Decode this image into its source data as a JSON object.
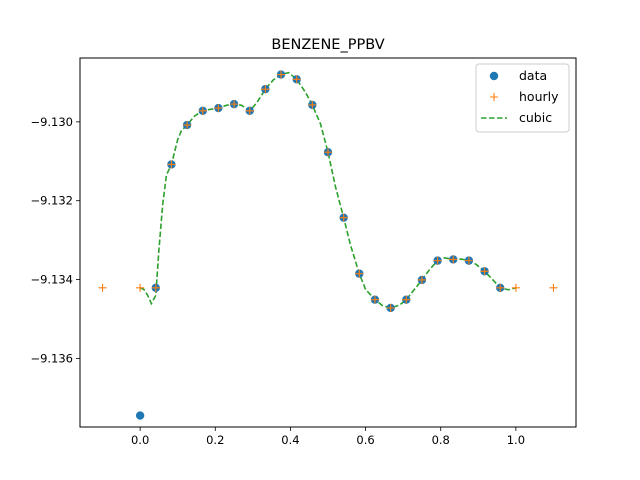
{
  "chart_data": {
    "type": "scatter",
    "title": "BENZENE_PPBV",
    "xlabel": "",
    "ylabel": "",
    "xlim": [
      -0.16,
      1.16
    ],
    "ylim": [
      -9.13774,
      -9.12838
    ],
    "x_ticks": [
      0.0,
      0.2,
      0.4,
      0.6,
      0.8,
      1.0
    ],
    "x_tick_labels": [
      "0.0",
      "0.2",
      "0.4",
      "0.6",
      "0.8",
      "1.0"
    ],
    "y_ticks": [
      -9.136,
      -9.134,
      -9.132,
      -9.13
    ],
    "y_tick_labels": [
      "−9.136",
      "−9.134",
      "−9.132",
      "−9.130"
    ],
    "grid": false,
    "legend_position": "top-right",
    "series": [
      {
        "name": "data",
        "style": "marker-circle",
        "color": "#1f77b4",
        "x": [
          0.0,
          0.0417,
          0.0833,
          0.125,
          0.1667,
          0.2083,
          0.25,
          0.2917,
          0.3333,
          0.375,
          0.4167,
          0.4583,
          0.5,
          0.5417,
          0.5833,
          0.625,
          0.6667,
          0.7083,
          0.75,
          0.7917,
          0.8333,
          0.875,
          0.9167,
          0.9583
        ],
        "y": [
          -9.13745,
          -9.13421,
          -9.13108,
          -9.13008,
          -9.12972,
          -9.12965,
          -9.12955,
          -9.12972,
          -9.12917,
          -9.1288,
          -9.12892,
          -9.12957,
          -9.13077,
          -9.13243,
          -9.13385,
          -9.13451,
          -9.13472,
          -9.13451,
          -9.13401,
          -9.13352,
          -9.13349,
          -9.13352,
          -9.13379,
          -9.13421
        ]
      },
      {
        "name": "hourly",
        "style": "marker-plus",
        "color": "#ff7f0e",
        "x": [
          -0.1,
          0.0,
          0.0417,
          0.0833,
          0.125,
          0.1667,
          0.2083,
          0.25,
          0.2917,
          0.3333,
          0.375,
          0.4167,
          0.4583,
          0.5,
          0.5417,
          0.5833,
          0.625,
          0.6667,
          0.7083,
          0.75,
          0.7917,
          0.8333,
          0.875,
          0.9167,
          0.9583,
          1.0,
          1.1
        ],
        "y": [
          -9.13421,
          -9.13421,
          -9.13421,
          -9.13108,
          -9.13008,
          -9.12972,
          -9.12965,
          -9.12955,
          -9.12972,
          -9.12917,
          -9.1288,
          -9.12892,
          -9.12957,
          -9.13077,
          -9.13243,
          -9.13385,
          -9.13451,
          -9.13472,
          -9.13451,
          -9.13401,
          -9.13352,
          -9.13349,
          -9.13352,
          -9.13379,
          -9.13421,
          -9.13421,
          -9.13421
        ]
      },
      {
        "name": "cubic",
        "style": "dashed-line",
        "color": "#2ca02c",
        "x": [
          0.0,
          0.01,
          0.02,
          0.03,
          0.0417,
          0.05,
          0.06,
          0.07,
          0.0833,
          0.1,
          0.11,
          0.125,
          0.145,
          0.1667,
          0.1875,
          0.2083,
          0.23,
          0.25,
          0.27,
          0.2917,
          0.31,
          0.3333,
          0.355,
          0.375,
          0.395,
          0.4167,
          0.44,
          0.4583,
          0.48,
          0.5,
          0.52,
          0.5417,
          0.56,
          0.5833,
          0.6,
          0.625,
          0.645,
          0.6667,
          0.69,
          0.7083,
          0.73,
          0.75,
          0.77,
          0.7917,
          0.81,
          0.8333,
          0.855,
          0.875,
          0.895,
          0.9167,
          0.94,
          0.9583,
          0.98,
          1.0
        ],
        "y": [
          -9.13421,
          -9.13425,
          -9.1344,
          -9.13461,
          -9.1344,
          -9.13325,
          -9.1321,
          -9.13135,
          -9.13108,
          -9.13045,
          -9.13022,
          -9.13008,
          -9.12985,
          -9.12972,
          -9.12968,
          -9.12965,
          -9.12958,
          -9.12955,
          -9.12958,
          -9.12972,
          -9.12952,
          -9.12917,
          -9.12893,
          -9.1288,
          -9.12875,
          -9.12892,
          -9.12925,
          -9.12957,
          -9.13005,
          -9.13077,
          -9.13165,
          -9.13243,
          -9.13313,
          -9.13385,
          -9.13425,
          -9.13451,
          -9.13466,
          -9.13472,
          -9.13465,
          -9.13451,
          -9.13425,
          -9.13401,
          -9.13375,
          -9.13352,
          -9.13345,
          -9.13349,
          -9.13348,
          -9.13352,
          -9.13362,
          -9.13379,
          -9.13402,
          -9.13421,
          -9.13426,
          -9.13421
        ]
      }
    ]
  }
}
